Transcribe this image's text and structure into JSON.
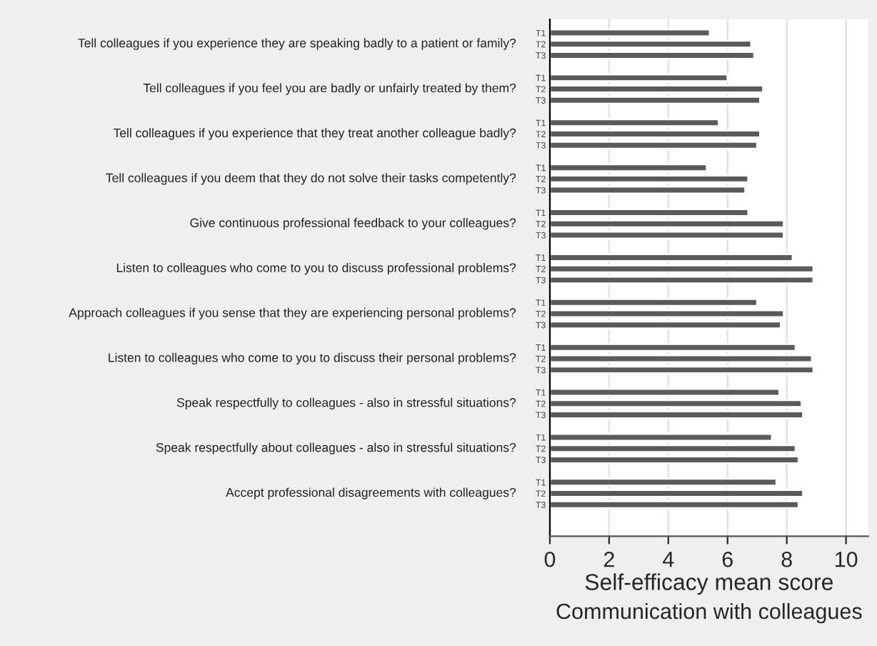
{
  "chart_data": {
    "type": "bar",
    "orientation": "horizontal",
    "categories": [
      "Tell colleagues if you experience they are speaking badly to a patient or family?",
      "Tell colleagues if you feel you are badly or unfairly treated by them?",
      "Tell colleagues if you experience that they treat another colleague badly?",
      "Tell colleagues if you deem that they do not solve their tasks competently?",
      "Give continuous professional feedback to your colleagues?",
      "Listen to colleagues who come to you to discuss professional problems?",
      "Approach colleagues if you sense that they are experiencing personal problems?",
      "Listen to colleagues who come to you to discuss their personal problems?",
      "Speak respectfully to colleagues - also in stressful situations?",
      "Speak respectfully about colleagues - also in stressful situations?",
      "Accept professional disagreements with colleagues?"
    ],
    "series": [
      {
        "name": "T1",
        "color": "#5a5a5a",
        "values": [
          5.4,
          6.0,
          5.7,
          5.3,
          6.7,
          8.2,
          7.0,
          8.3,
          7.75,
          7.5,
          7.65
        ]
      },
      {
        "name": "T2",
        "color": "#5a5a5a",
        "values": [
          6.8,
          7.2,
          7.1,
          6.7,
          7.9,
          8.9,
          7.9,
          8.85,
          8.5,
          8.3,
          8.55
        ]
      },
      {
        "name": "T3",
        "color": "#5a5a5a",
        "values": [
          6.9,
          7.1,
          7.0,
          6.6,
          7.9,
          8.9,
          7.8,
          8.9,
          8.55,
          8.4,
          8.4
        ]
      }
    ],
    "xlabel": "Self-efficacy mean score",
    "annotations": [
      "Communication with colleagues"
    ],
    "xlim": [
      0,
      10.75
    ],
    "xticks": [
      0,
      2,
      4,
      6,
      8,
      10
    ],
    "grid": "x",
    "legend": false
  }
}
